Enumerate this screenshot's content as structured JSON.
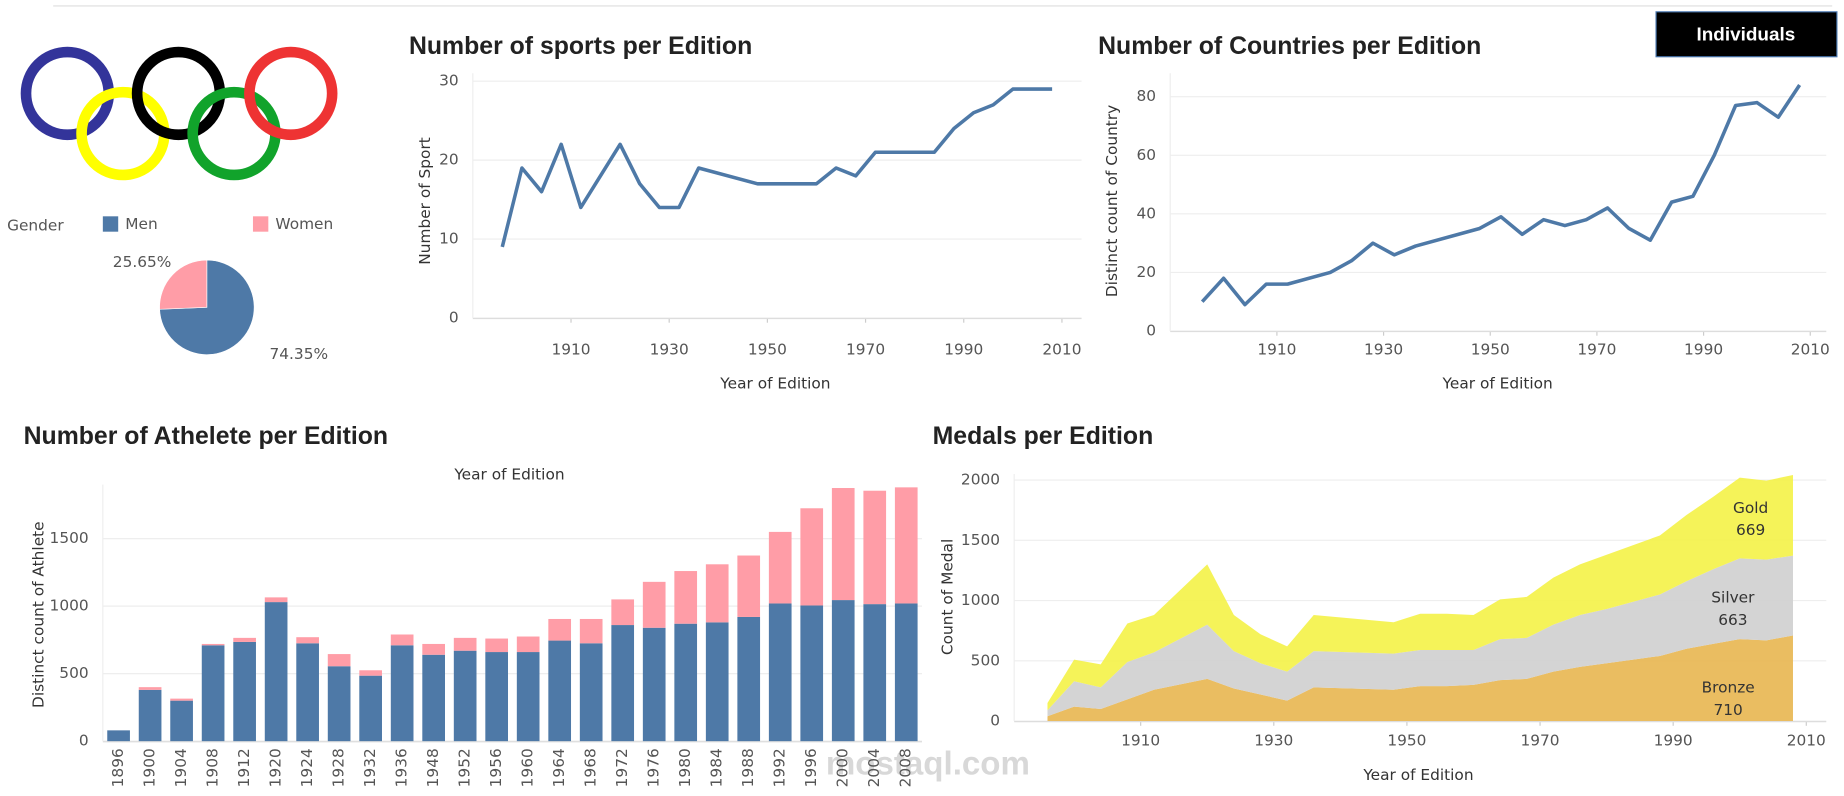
{
  "button": "Individuals",
  "watermark": "mostaql.com",
  "chart_data": [
    {
      "type": "pie",
      "legend_title": "Gender",
      "categories": [
        "Men",
        "Women"
      ],
      "values": [
        74.35,
        25.65
      ],
      "value_labels": [
        "74.35%",
        "25.65%"
      ],
      "colors": [
        "#4e79a7",
        "#ff9da7"
      ]
    },
    {
      "type": "line",
      "title": "Number of sports per Edition",
      "x_label": "Year of Edition",
      "y_label": "Number of Sport",
      "color": "#4e79a7",
      "grid": true,
      "x": [
        1896,
        1900,
        1904,
        1908,
        1912,
        1920,
        1924,
        1928,
        1932,
        1936,
        1948,
        1952,
        1956,
        1960,
        1964,
        1968,
        1972,
        1976,
        1980,
        1984,
        1988,
        1992,
        1996,
        2000,
        2004,
        2008
      ],
      "values": [
        9,
        19,
        16,
        22,
        14,
        22,
        17,
        14,
        14,
        19,
        17,
        17,
        17,
        17,
        19,
        18,
        21,
        21,
        21,
        21,
        24,
        26,
        27,
        29,
        29,
        29
      ],
      "xlim": [
        1890,
        2014
      ],
      "xticks": [
        1910,
        1930,
        1950,
        1970,
        1990,
        2010
      ],
      "ylim": [
        0,
        31
      ],
      "yticks": [
        0,
        10,
        20,
        30
      ]
    },
    {
      "type": "line",
      "title": "Number of Countries per Edition",
      "x_label": "Year of Edition",
      "y_label": "Distinct count of Country",
      "color": "#4e79a7",
      "grid": true,
      "x": [
        1896,
        1900,
        1904,
        1908,
        1912,
        1920,
        1924,
        1928,
        1932,
        1936,
        1948,
        1952,
        1956,
        1960,
        1964,
        1968,
        1972,
        1976,
        1980,
        1984,
        1988,
        1992,
        1996,
        2000,
        2004,
        2008
      ],
      "values": [
        10,
        18,
        9,
        16,
        16,
        20,
        24,
        30,
        26,
        29,
        35,
        39,
        33,
        38,
        36,
        38,
        42,
        35,
        31,
        44,
        46,
        60,
        77,
        78,
        73,
        84
      ],
      "xlim": [
        1890,
        2013
      ],
      "xticks": [
        1910,
        1930,
        1950,
        1970,
        1990,
        2010
      ],
      "ylim": [
        0,
        88
      ],
      "yticks": [
        0,
        20,
        40,
        60,
        80
      ]
    },
    {
      "type": "stacked-bar",
      "title": "Number of Athelete per Edition",
      "x_label": "Year of Edition",
      "y_label": "Distinct count of Athlete",
      "grid": true,
      "categories": [
        "1896",
        "1900",
        "1904",
        "1908",
        "1912",
        "1920",
        "1924",
        "1928",
        "1932",
        "1936",
        "1948",
        "1952",
        "1956",
        "1960",
        "1964",
        "1968",
        "1972",
        "1976",
        "1980",
        "1984",
        "1988",
        "1992",
        "1996",
        "2000",
        "2004",
        "2008"
      ],
      "series": [
        {
          "color": "#4e79a7",
          "values": [
            80,
            380,
            300,
            710,
            735,
            1030,
            725,
            555,
            485,
            710,
            640,
            670,
            660,
            660,
            745,
            725,
            860,
            840,
            870,
            880,
            920,
            1020,
            1005,
            1045,
            1015,
            1020
          ]
        },
        {
          "color": "#ff9da7",
          "values": [
            0,
            20,
            15,
            10,
            30,
            35,
            45,
            90,
            40,
            80,
            80,
            95,
            100,
            115,
            160,
            180,
            190,
            340,
            390,
            430,
            455,
            530,
            720,
            830,
            840,
            860
          ]
        }
      ],
      "ylim": [
        0,
        1900
      ],
      "yticks": [
        0,
        500,
        1000,
        1500
      ]
    },
    {
      "type": "stacked-area",
      "title": "Medals per Edition",
      "x_label": "Year of Edition",
      "y_label": "Count of Medal",
      "grid": true,
      "x": [
        1896,
        1900,
        1904,
        1908,
        1912,
        1920,
        1924,
        1928,
        1932,
        1936,
        1948,
        1952,
        1956,
        1960,
        1964,
        1968,
        1972,
        1976,
        1980,
        1984,
        1988,
        1992,
        1996,
        2000,
        2004,
        2008
      ],
      "series": [
        {
          "name": "Bronze",
          "color": "#e8b650",
          "values": [
            40,
            120,
            100,
            180,
            260,
            350,
            270,
            220,
            170,
            280,
            260,
            290,
            290,
            300,
            340,
            350,
            410,
            450,
            480,
            510,
            540,
            600,
            640,
            680,
            670,
            710
          ]
        },
        {
          "name": "Silver",
          "color": "#cfcfcf",
          "values": [
            50,
            210,
            180,
            310,
            310,
            450,
            310,
            260,
            240,
            300,
            300,
            300,
            300,
            290,
            340,
            340,
            390,
            430,
            450,
            480,
            510,
            560,
            620,
            670,
            670,
            663
          ]
        },
        {
          "name": "Gold",
          "color": "#f4f247",
          "values": [
            60,
            180,
            190,
            320,
            310,
            500,
            300,
            240,
            210,
            300,
            260,
            300,
            300,
            290,
            330,
            340,
            390,
            420,
            450,
            470,
            490,
            550,
            600,
            670,
            655,
            669
          ]
        }
      ],
      "xlim": [
        1891,
        2013
      ],
      "xticks": [
        1910,
        1930,
        1950,
        1970,
        1990,
        2010
      ],
      "ylim": [
        0,
        2050
      ],
      "yticks": [
        0,
        500,
        1000,
        1500,
        2000
      ]
    }
  ]
}
